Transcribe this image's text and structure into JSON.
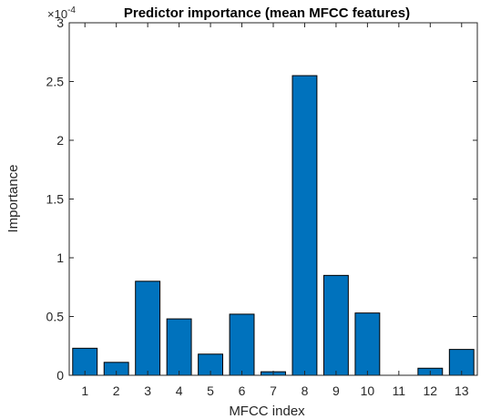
{
  "chart_data": {
    "type": "bar",
    "title": "Predictor importance (mean MFCC features)",
    "xlabel": "MFCC index",
    "ylabel": "Importance",
    "categories": [
      "1",
      "2",
      "3",
      "4",
      "5",
      "6",
      "7",
      "8",
      "9",
      "10",
      "11",
      "12",
      "13"
    ],
    "values": [
      2.3e-05,
      1.1e-05,
      8e-05,
      4.8e-05,
      1.8e-05,
      5.2e-05,
      3e-06,
      0.000255,
      8.5e-05,
      5.3e-05,
      0.0,
      6e-06,
      2.2e-05
    ],
    "ylim": [
      0,
      0.0003
    ],
    "yticks": [
      0,
      5e-05,
      0.0001,
      0.00015,
      0.0002,
      0.00025,
      0.0003
    ],
    "ytick_labels": [
      "0",
      "0.5",
      "1",
      "1.5",
      "2",
      "2.5",
      "3"
    ],
    "y_exponent_base": "×10",
    "y_exponent_power": "-4",
    "bar_color": "#0072BD",
    "edge_color": "#000000",
    "grid": false,
    "box": true
  }
}
